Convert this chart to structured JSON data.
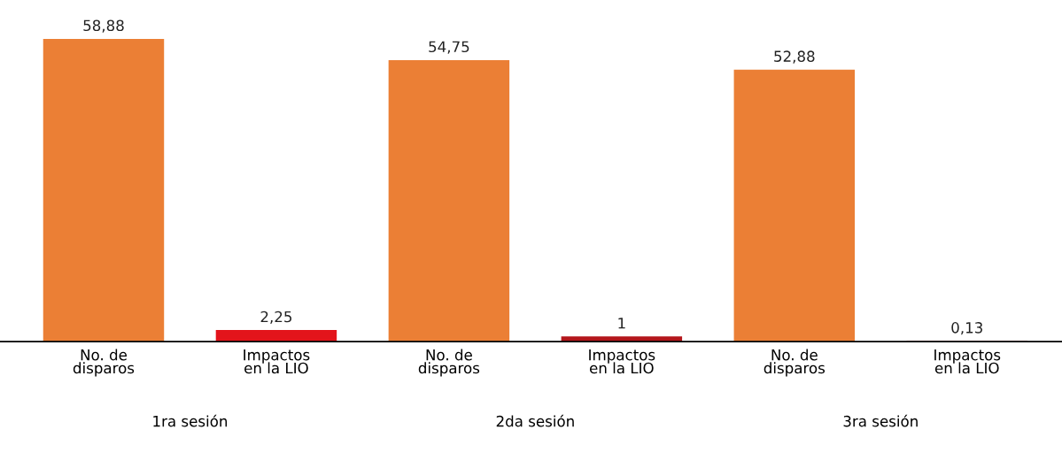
{
  "chart_data": {
    "type": "bar",
    "categories": [
      "No. de\ndisparos",
      "Impactos\nen la LIO",
      "No. de\ndisparos",
      "Impactos\nen la LIO",
      "No. de\ndisparos",
      "Impactos\nen la LIO"
    ],
    "values": [
      58.88,
      2.25,
      54.75,
      1,
      52.88,
      0.13
    ],
    "colors": [
      "#eb7f35",
      "#e3141b",
      "#eb7f35",
      "#b3161b",
      "#eb7f35",
      "#b3161b"
    ],
    "value_labels": [
      "58,88",
      "2,25",
      "54,75",
      "1",
      "52,88",
      "0,13"
    ],
    "annotations": [
      "1ra sesión",
      "2da sesión",
      "3ra sesión"
    ],
    "grid": false,
    "legend": false
  }
}
